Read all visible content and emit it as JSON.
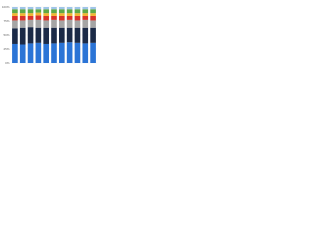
{
  "chart_data": {
    "type": "stacked_bar",
    "categories": [
      null,
      null,
      null,
      null,
      null,
      null,
      null,
      null,
      null,
      null,
      null
    ],
    "series": [
      {
        "color": "#2b74d6",
        "values": [
          34,
          33,
          35,
          36,
          34,
          35,
          36,
          37,
          36,
          35,
          36
        ]
      },
      {
        "color": "#1b2a47",
        "values": [
          28,
          30,
          29,
          27,
          29,
          28,
          27,
          26,
          27,
          28,
          27
        ]
      },
      {
        "color": "#a5a5a5",
        "values": [
          14,
          13,
          13,
          14,
          13,
          14,
          13,
          14,
          13,
          14,
          13
        ]
      },
      {
        "color": "#d9342b",
        "values": [
          8,
          8,
          7,
          8,
          8,
          7,
          8,
          7,
          8,
          7,
          8
        ]
      },
      {
        "color": "#f2b531",
        "values": [
          5,
          5,
          5,
          5,
          5,
          5,
          5,
          5,
          5,
          5,
          5
        ]
      },
      {
        "color": "#5fa846",
        "values": [
          7,
          7,
          7,
          6,
          7,
          7,
          7,
          7,
          7,
          7,
          7
        ]
      },
      {
        "color": "#9fc5e8",
        "values": [
          4,
          4,
          4,
          4,
          4,
          4,
          4,
          4,
          4,
          4,
          4
        ]
      }
    ],
    "ylim": [
      0,
      100
    ],
    "yticks": [
      {
        "value": 0,
        "label": "0%"
      },
      {
        "value": 25,
        "label": "25%"
      },
      {
        "value": 50,
        "label": "50%"
      },
      {
        "value": 75,
        "label": "75%"
      },
      {
        "value": 100,
        "label": "100%"
      }
    ],
    "grid": true
  }
}
